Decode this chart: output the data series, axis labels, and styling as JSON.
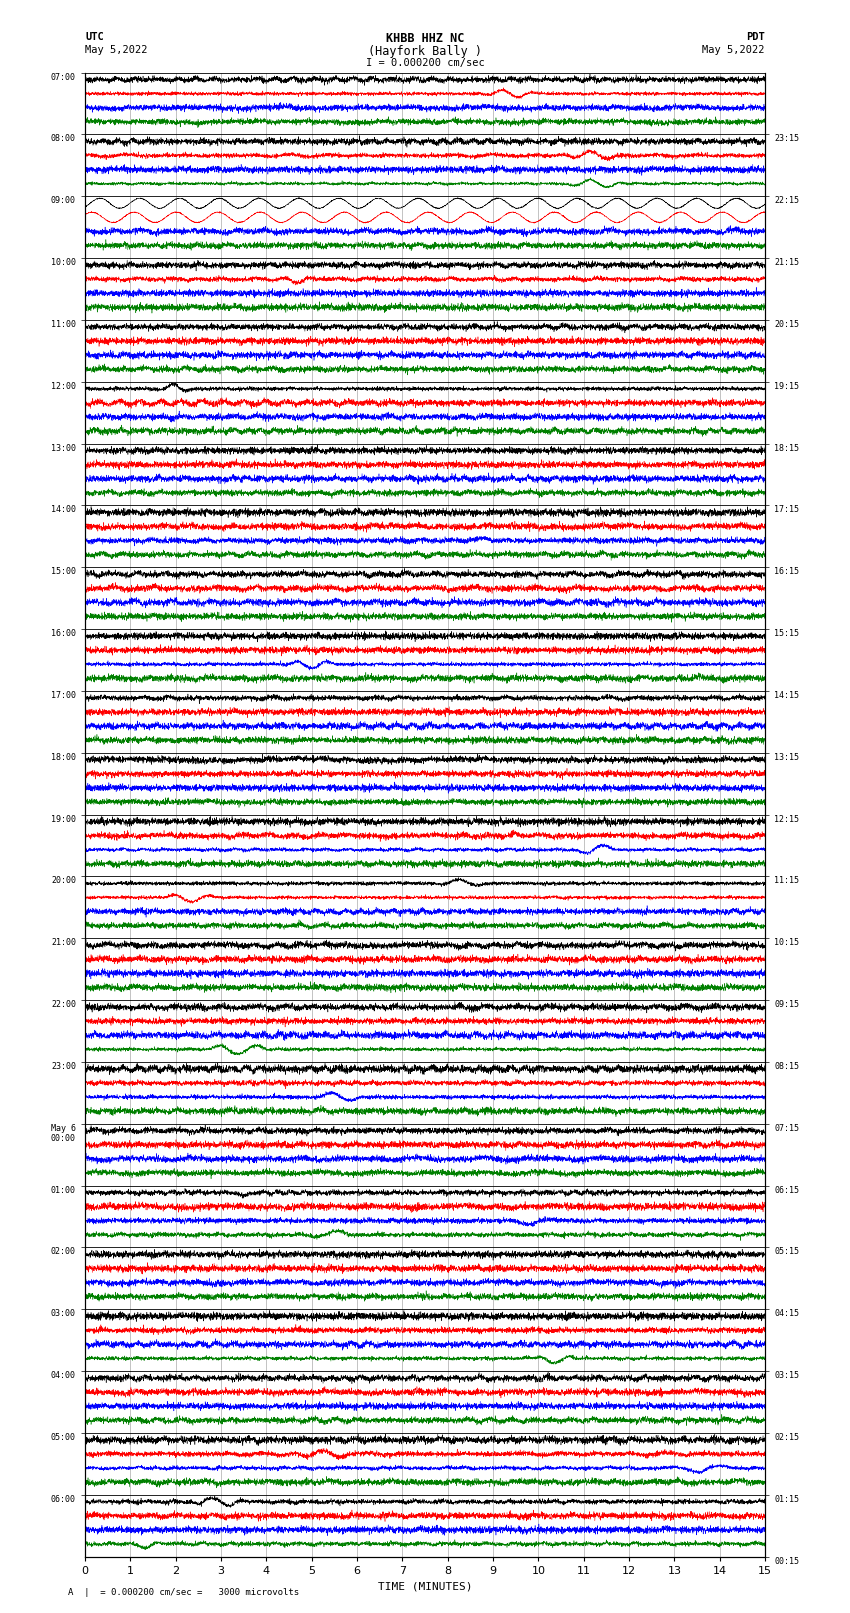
{
  "title_line1": "KHBB HHZ NC",
  "title_line2": "(Hayfork Bally )",
  "title_scale": "I = 0.000200 cm/sec",
  "utc_label": "UTC",
  "utc_date": "May 5,2022",
  "pdt_label": "PDT",
  "pdt_date": "May 5,2022",
  "xlabel": "TIME (MINUTES)",
  "footer": "= 0.000200 cm/sec =   3000 microvolts",
  "left_times": [
    "07:00",
    "08:00",
    "09:00",
    "10:00",
    "11:00",
    "12:00",
    "13:00",
    "14:00",
    "15:00",
    "16:00",
    "17:00",
    "18:00",
    "19:00",
    "20:00",
    "21:00",
    "22:00",
    "23:00",
    "May 6\n00:00",
    "01:00",
    "02:00",
    "03:00",
    "04:00",
    "05:00",
    "06:00"
  ],
  "right_times": [
    "00:15",
    "01:15",
    "02:15",
    "03:15",
    "04:15",
    "05:15",
    "06:15",
    "07:15",
    "08:15",
    "09:15",
    "10:15",
    "11:15",
    "12:15",
    "13:15",
    "14:15",
    "15:15",
    "16:15",
    "17:15",
    "18:15",
    "19:15",
    "20:15",
    "21:15",
    "22:15",
    "23:15"
  ],
  "num_rows": 24,
  "num_traces_per_row": 4,
  "trace_colors": [
    "black",
    "red",
    "blue",
    "green"
  ],
  "background_color": "white",
  "grid_color": "#888888",
  "xlim": [
    0,
    15
  ],
  "xticks": [
    0,
    1,
    2,
    3,
    4,
    5,
    6,
    7,
    8,
    9,
    10,
    11,
    12,
    13,
    14,
    15
  ],
  "figsize": [
    8.5,
    16.13
  ],
  "dpi": 100,
  "fs": 300,
  "noise_seed": 42,
  "large_event_row": 2,
  "large_event_traces": [
    0,
    1
  ]
}
